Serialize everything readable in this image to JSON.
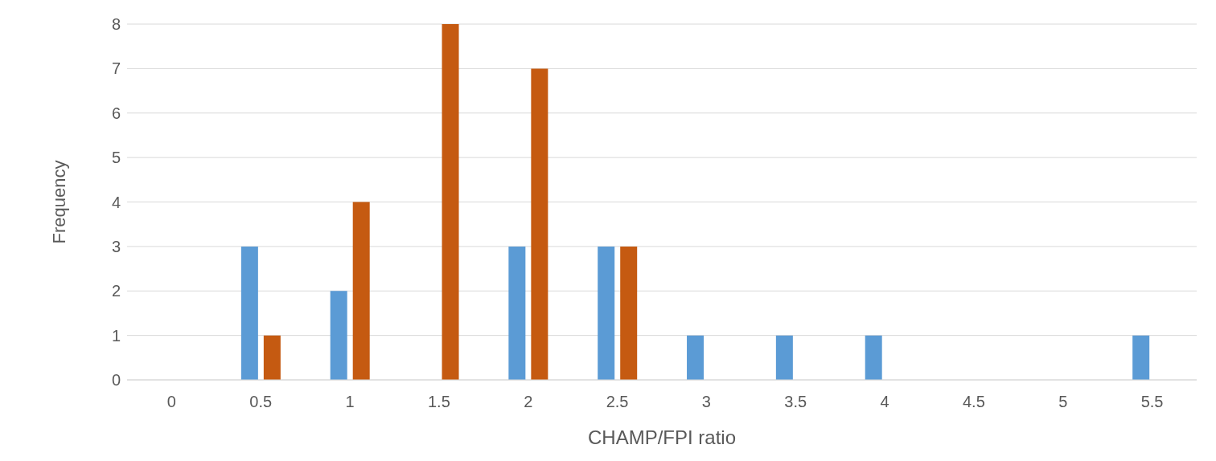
{
  "chart_data": {
    "type": "bar",
    "xlabel": "CHAMP/FPI ratio",
    "ylabel": "Frequency",
    "categories": [
      "0",
      "0.5",
      "1",
      "1.5",
      "2",
      "2.5",
      "3",
      "3.5",
      "4",
      "4.5",
      "5",
      "5.5"
    ],
    "series": [
      {
        "color": "#5b9bd5",
        "values": [
          0,
          3,
          2,
          0,
          3,
          3,
          1,
          1,
          1,
          0,
          0,
          1
        ]
      },
      {
        "color": "#c55a11",
        "values": [
          0,
          1,
          4,
          8,
          7,
          3,
          0,
          0,
          0,
          0,
          0,
          0
        ]
      }
    ],
    "ylim": [
      0,
      8
    ],
    "yticks": [
      0,
      1,
      2,
      3,
      4,
      5,
      6,
      7,
      8
    ],
    "grid": "y",
    "legend": false
  }
}
